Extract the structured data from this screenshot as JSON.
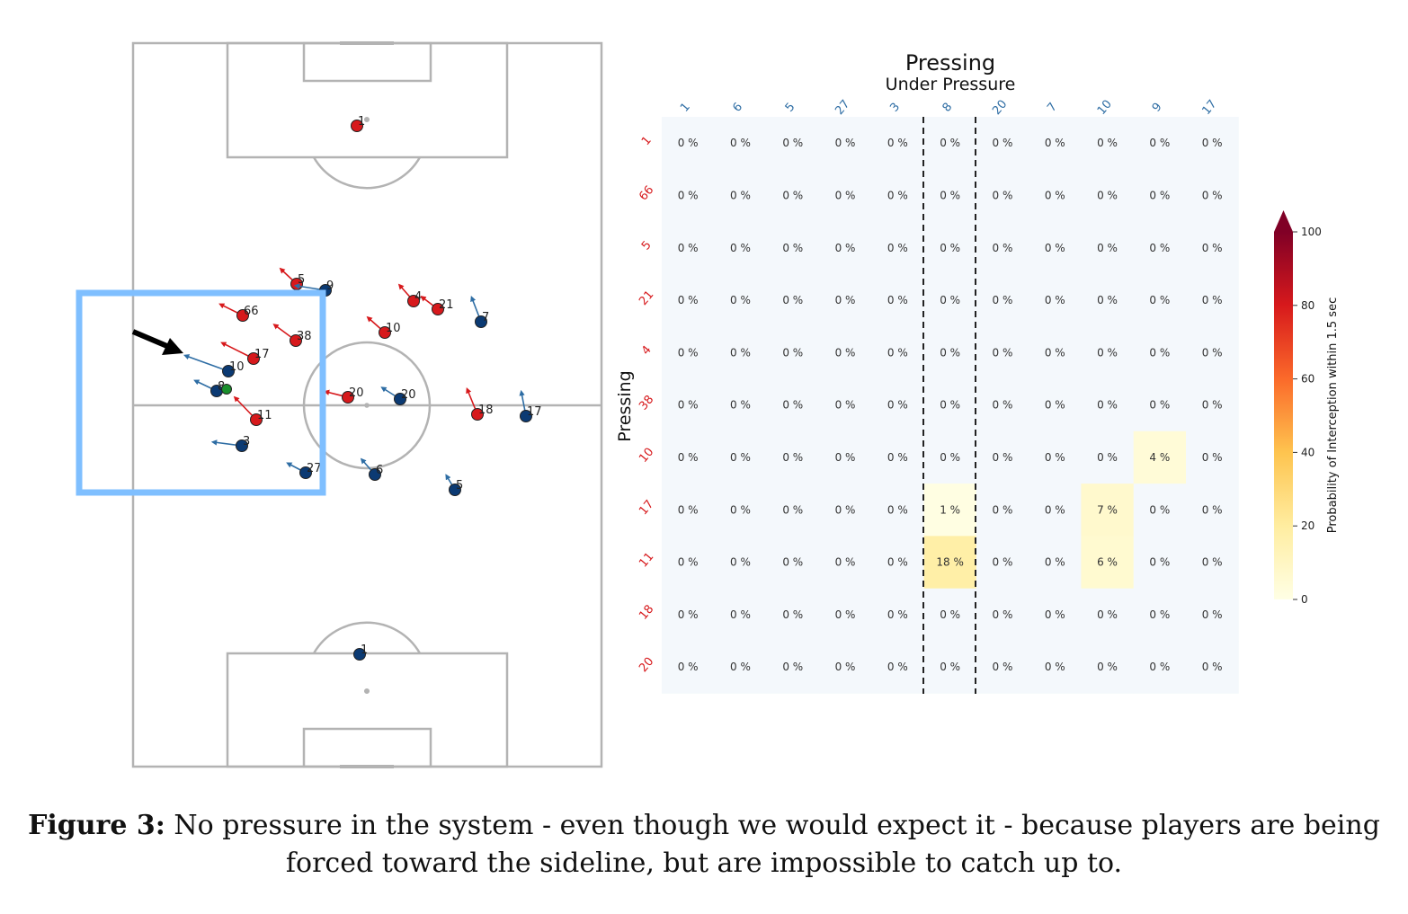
{
  "pitch": {
    "red_players": [
      {
        "label": "1"
      },
      {
        "label": "5"
      },
      {
        "label": "66"
      },
      {
        "label": "38"
      },
      {
        "label": "17"
      },
      {
        "label": "11"
      },
      {
        "label": "10"
      },
      {
        "label": "4"
      },
      {
        "label": "21"
      },
      {
        "label": "20"
      },
      {
        "label": "18"
      }
    ],
    "blue_players": [
      {
        "label": "9"
      },
      {
        "label": "7"
      },
      {
        "label": "10"
      },
      {
        "label": "8"
      },
      {
        "label": "20"
      },
      {
        "label": "17"
      },
      {
        "label": "3"
      },
      {
        "label": "27"
      },
      {
        "label": "6"
      },
      {
        "label": "5"
      },
      {
        "label": "1"
      }
    ],
    "colors": {
      "red": "#d7191c",
      "blue": "#0b3a73",
      "ball": "#1a8f2c",
      "highlight": "#7fbfff",
      "lines": "#b3b3b3"
    }
  },
  "chart_data": {
    "type": "heatmap",
    "title": "Pressing",
    "xlabel": "Under Pressure",
    "ylabel": "Pressing",
    "x_categories": [
      "1",
      "6",
      "5",
      "27",
      "3",
      "8",
      "20",
      "7",
      "10",
      "9",
      "17"
    ],
    "y_categories": [
      "1",
      "66",
      "5",
      "21",
      "4",
      "38",
      "10",
      "17",
      "11",
      "18",
      "20"
    ],
    "values": [
      [
        0,
        0,
        0,
        0,
        0,
        0,
        0,
        0,
        0,
        0,
        0
      ],
      [
        0,
        0,
        0,
        0,
        0,
        0,
        0,
        0,
        0,
        0,
        0
      ],
      [
        0,
        0,
        0,
        0,
        0,
        0,
        0,
        0,
        0,
        0,
        0
      ],
      [
        0,
        0,
        0,
        0,
        0,
        0,
        0,
        0,
        0,
        0,
        0
      ],
      [
        0,
        0,
        0,
        0,
        0,
        0,
        0,
        0,
        0,
        0,
        0
      ],
      [
        0,
        0,
        0,
        0,
        0,
        0,
        0,
        0,
        0,
        0,
        0
      ],
      [
        0,
        0,
        0,
        0,
        0,
        0,
        0,
        0,
        0,
        4,
        0
      ],
      [
        0,
        0,
        0,
        0,
        0,
        1,
        0,
        0,
        7,
        0,
        0
      ],
      [
        0,
        0,
        0,
        0,
        0,
        18,
        0,
        0,
        6,
        0,
        0
      ],
      [
        0,
        0,
        0,
        0,
        0,
        0,
        0,
        0,
        0,
        0,
        0
      ],
      [
        0,
        0,
        0,
        0,
        0,
        0,
        0,
        0,
        0,
        0,
        0
      ]
    ],
    "value_suffix": " %",
    "highlighted_column": "8",
    "colorbar": {
      "label": "Probability of Interception within 1.5 sec",
      "range": [
        0,
        100
      ],
      "ticks": [
        "0",
        "20",
        "40",
        "60",
        "80",
        "100"
      ],
      "colormap": "YlOrRd"
    },
    "colors": {
      "x_tick": "#2e6da4",
      "y_tick": "#d7191c",
      "zero_cell": "#f4f8fc"
    }
  },
  "caption": {
    "label": "Figure 3:",
    "text": "No pressure in the system - even though we would expect it - because players are being forced toward the sideline, but are impossible to catch up to."
  }
}
